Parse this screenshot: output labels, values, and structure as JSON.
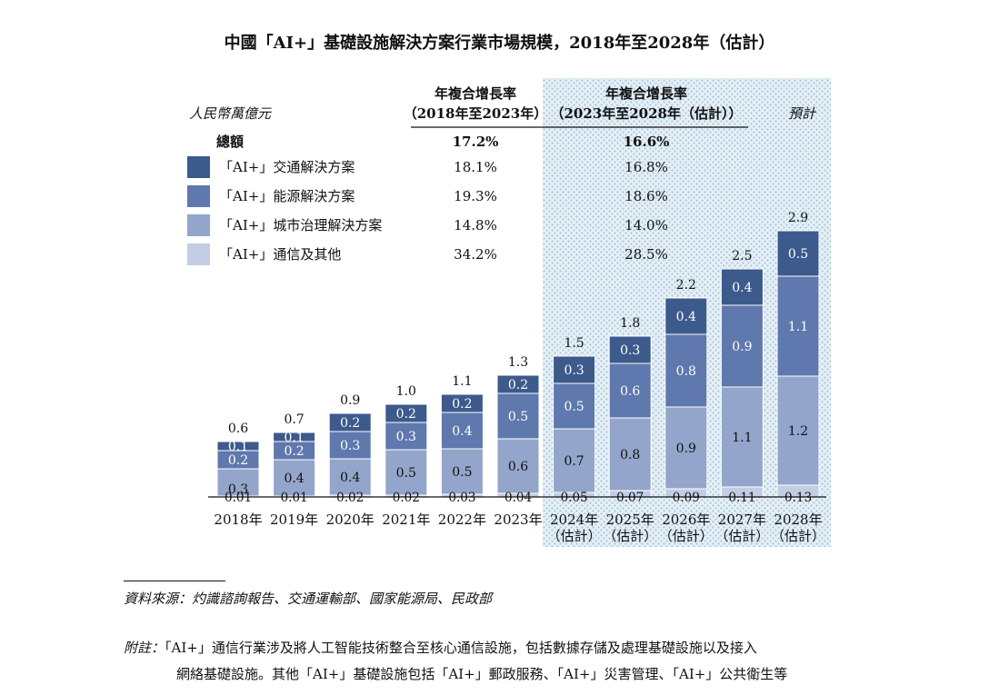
{
  "title": "中國「AI+」基礎設施解決方案行業市場規模，2018年至2028年（估計）",
  "unit_label": "人民幣萬億元",
  "forecast_label": "預計",
  "cagr_header_1": [
    "年複合增長率",
    "（2018年至2023年）"
  ],
  "cagr_header_2": [
    "年複合增長率",
    "（2023年至2028年（估計））"
  ],
  "colors": {
    "transport": "#3d5a8c",
    "energy": "#5f78ad",
    "urban": "#93a5ca",
    "comm": "#c3cde3",
    "forecast_bg": "#d6e6f0"
  },
  "table": {
    "total_label": "總額",
    "total_cagr_1": "17.2%",
    "total_cagr_2": "16.6%",
    "rows": [
      {
        "label": "「AI+」交通解決方案",
        "cagr_1": "18.1%",
        "cagr_2": "16.8%",
        "color": "#3d5a8c"
      },
      {
        "label": "「AI+」能源解決方案",
        "cagr_1": "19.3%",
        "cagr_2": "18.6%",
        "color": "#5f78ad"
      },
      {
        "label": "「AI+」城市治理解決方案",
        "cagr_1": "14.8%",
        "cagr_2": "14.0%",
        "color": "#93a5ca"
      },
      {
        "label": "「AI+」通信及其他",
        "cagr_1": "34.2%",
        "cagr_2": "28.5%",
        "color": "#c3cde3"
      }
    ]
  },
  "chart_data": {
    "type": "bar",
    "stacked": true,
    "title": "中國「AI+」基礎設施解決方案行業市場規模，2018年至2028年（估計）",
    "ylabel": "人民幣萬億元",
    "categories": [
      [
        "2018年"
      ],
      [
        "2019年"
      ],
      [
        "2020年"
      ],
      [
        "2021年"
      ],
      [
        "2022年"
      ],
      [
        "2023年"
      ],
      [
        "2024年",
        "（估計）"
      ],
      [
        "2025年",
        "（估計）"
      ],
      [
        "2026年",
        "（估計）"
      ],
      [
        "2027年",
        "（估計）"
      ],
      [
        "2028年",
        "（估計）"
      ]
    ],
    "totals": [
      "0.6",
      "0.7",
      "0.9",
      "1.0",
      "1.1",
      "1.3",
      "1.5",
      "1.8",
      "2.2",
      "2.5",
      "2.9"
    ],
    "series": [
      {
        "name": "「AI+」通信及其他",
        "values": [
          0.01,
          0.01,
          0.02,
          0.02,
          0.03,
          0.04,
          0.05,
          0.07,
          0.09,
          0.11,
          0.13
        ],
        "labels": [
          "0.01",
          "0.01",
          "0.02",
          "0.02",
          "0.03",
          "0.04",
          "0.05",
          "0.07",
          "0.09",
          "0.11",
          "0.13"
        ]
      },
      {
        "name": "「AI+」城市治理解決方案",
        "values": [
          0.3,
          0.4,
          0.4,
          0.5,
          0.5,
          0.6,
          0.7,
          0.8,
          0.9,
          1.1,
          1.2
        ],
        "labels": [
          "0.3",
          "0.4",
          "0.4",
          "0.5",
          "0.5",
          "0.6",
          "0.7",
          "0.8",
          "0.9",
          "1.1",
          "1.2"
        ]
      },
      {
        "name": "「AI+」能源解決方案",
        "values": [
          0.2,
          0.2,
          0.3,
          0.3,
          0.4,
          0.5,
          0.5,
          0.6,
          0.8,
          0.9,
          1.1
        ],
        "labels": [
          "0.2",
          "0.2",
          "0.3",
          "0.3",
          "0.4",
          "0.5",
          "0.5",
          "0.6",
          "0.8",
          "0.9",
          "1.1"
        ]
      },
      {
        "name": "「AI+」交通解決方案",
        "values": [
          0.1,
          0.1,
          0.2,
          0.2,
          0.2,
          0.2,
          0.3,
          0.3,
          0.4,
          0.4,
          0.5
        ],
        "labels": [
          "0.1",
          "0.1",
          "0.2",
          "0.2",
          "0.2",
          "0.2",
          "0.3",
          "0.3",
          "0.4",
          "0.4",
          "0.5"
        ]
      }
    ],
    "forecast_categories": [
      6,
      7,
      8,
      9,
      10
    ],
    "legend_position": "top-left",
    "grid": false
  },
  "source": "資料來源：灼識諮詢報告、交通運輸部、國家能源局、民政部",
  "note_label": "附註：",
  "note_line_1": "「AI+」通信行業涉及將人工智能技術整合至核心通信設施，包括數據存儲及處理基礎設施以及接入",
  "note_line_2": "網絡基礎設施。其他「AI+」基礎設施包括「AI+」郵政服務、「AI+」災害管理、「AI+」公共衛生等"
}
